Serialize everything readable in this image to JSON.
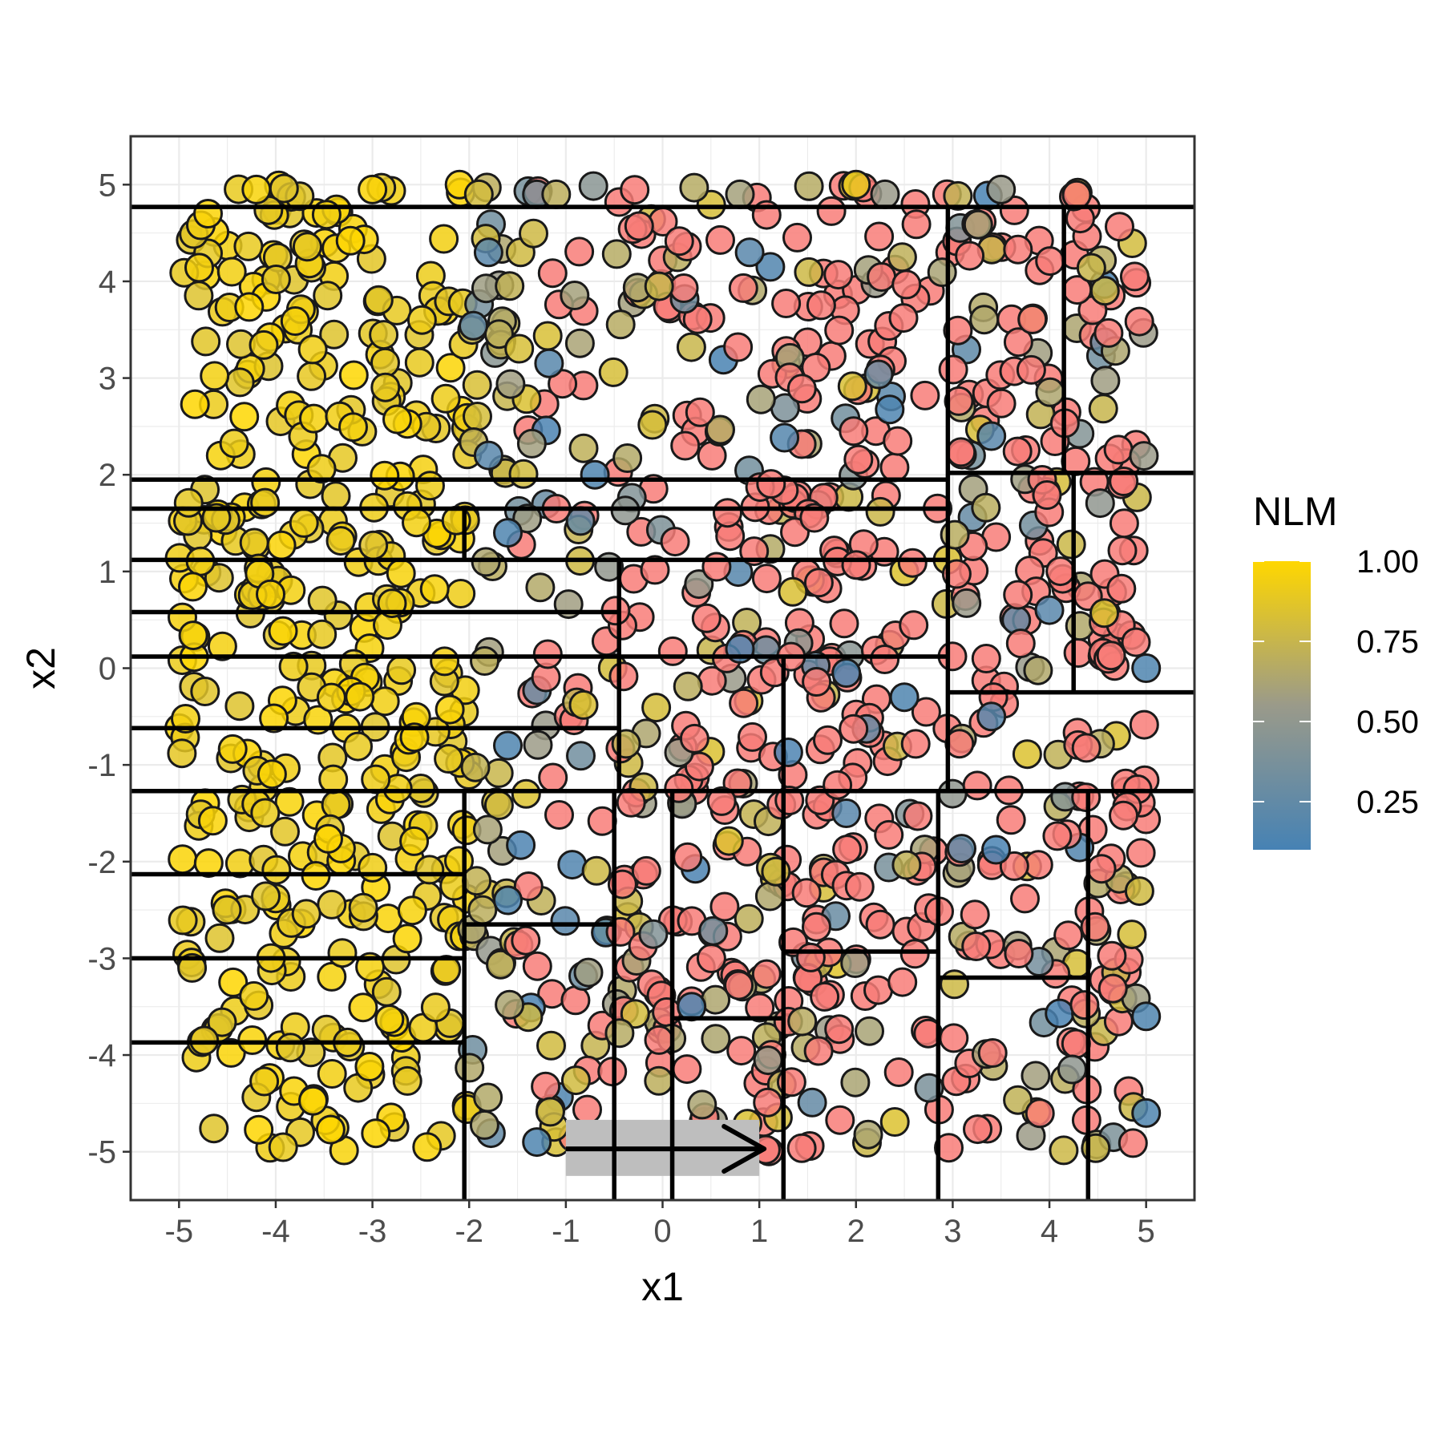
{
  "chart_data": {
    "type": "scatter",
    "xlabel": "x1",
    "ylabel": "x2",
    "xlim": [
      -5.5,
      5.5
    ],
    "ylim": [
      -5.5,
      5.5
    ],
    "xticks": [
      -5,
      -4,
      -3,
      -2,
      -1,
      0,
      1,
      2,
      3,
      4,
      5
    ],
    "yticks": [
      -5,
      -4,
      -3,
      -2,
      -1,
      0,
      1,
      2,
      3,
      4,
      5
    ],
    "grid": true,
    "legend": {
      "title": "NLM",
      "position": "right",
      "type": "colorbar",
      "range": [
        0.1,
        1.0
      ],
      "ticks": [
        1.0,
        0.75,
        0.5,
        0.25
      ],
      "tick_labels": [
        "1.00",
        "0.75",
        "0.50",
        "0.25"
      ],
      "colors": {
        "low": "#4682b4",
        "mid": "#9a9a8a",
        "high": "#ffd700"
      }
    },
    "unscored_color": "#f87c78",
    "points": {
      "description_values": "x1, x2, NLM (null NLM = red points without score)",
      "regions": [
        {
          "x": [
            -5.0,
            -2.0
          ],
          "y": [
            -5.0,
            5.0
          ],
          "count": 420,
          "nlm": [
            0.85,
            1.0
          ]
        },
        {
          "x": [
            -2.0,
            -1.6
          ],
          "y": [
            -5.0,
            5.0
          ],
          "count": 45,
          "nlm": [
            0.2,
            0.85
          ]
        },
        {
          "x": [
            -1.6,
            -0.5
          ],
          "y": [
            -5.0,
            5.0
          ],
          "count": 90,
          "nlm": [
            0.1,
            0.85
          ],
          "red_share": 0.35
        },
        {
          "x": [
            -0.5,
            3.0
          ],
          "y": [
            -5.0,
            5.0
          ],
          "count": 420,
          "nlm": [
            0.1,
            0.9
          ],
          "red_share": 0.62
        },
        {
          "x": [
            3.0,
            5.0
          ],
          "y": [
            -5.0,
            5.0
          ],
          "count": 260,
          "nlm": [
            0.1,
            0.85
          ],
          "red_share": 0.6
        }
      ],
      "explicit": [
        [
          -4.7,
          4.7,
          0.98
        ],
        [
          -4.2,
          4.95,
          0.97
        ],
        [
          -3.0,
          4.95,
          0.98
        ],
        [
          -2.1,
          5.0,
          0.98
        ],
        [
          -1.9,
          4.9,
          0.8
        ],
        [
          -1.3,
          4.9,
          0.4
        ],
        [
          -1.1,
          4.9,
          0.7
        ],
        [
          0.8,
          4.9,
          0.6
        ],
        [
          2.0,
          5.0,
          0.9
        ],
        [
          2.3,
          4.9,
          0.55
        ],
        [
          3.5,
          4.95,
          0.55
        ],
        [
          -1.8,
          4.3,
          0.2
        ],
        [
          0.9,
          4.3,
          0.2
        ],
        [
          -1.8,
          2.2,
          0.2
        ],
        [
          -0.7,
          2.0,
          0.15
        ],
        [
          -1.6,
          1.4,
          0.15
        ],
        [
          3.4,
          2.4,
          0.2
        ],
        [
          4.0,
          0.6,
          0.2
        ],
        [
          5.0,
          0.0,
          0.15
        ],
        [
          0.8,
          0.2,
          0.15
        ],
        [
          1.9,
          -0.05,
          0.15
        ],
        [
          2.5,
          -0.3,
          0.15
        ],
        [
          -1.6,
          -0.8,
          0.15
        ],
        [
          -1.6,
          -2.4,
          0.15
        ],
        [
          0.3,
          -3.5,
          0.15
        ],
        [
          1.9,
          -1.5,
          0.2
        ],
        [
          5.0,
          -3.6,
          0.15
        ],
        [
          5.0,
          -4.6,
          0.15
        ],
        [
          -1.3,
          -4.9,
          0.15
        ],
        [
          3.4,
          -0.5,
          0.2
        ]
      ]
    },
    "partition_lines": [
      {
        "orient": "h",
        "y": 4.77,
        "x": [
          -5.5,
          5.5
        ]
      },
      {
        "orient": "h",
        "y": 1.95,
        "x": [
          -5.5,
          2.95
        ]
      },
      {
        "orient": "h",
        "y": 1.65,
        "x": [
          -5.5,
          2.95
        ]
      },
      {
        "orient": "h",
        "y": 1.12,
        "x": [
          -5.5,
          2.95
        ]
      },
      {
        "orient": "h",
        "y": 0.58,
        "x": [
          -5.5,
          -0.45
        ]
      },
      {
        "orient": "h",
        "y": 0.12,
        "x": [
          -5.5,
          2.95
        ]
      },
      {
        "orient": "h",
        "y": -0.62,
        "x": [
          -5.5,
          -0.45
        ]
      },
      {
        "orient": "h",
        "y": -1.27,
        "x": [
          -5.5,
          5.5
        ]
      },
      {
        "orient": "h",
        "y": -2.13,
        "x": [
          -5.5,
          -2.05
        ]
      },
      {
        "orient": "h",
        "y": -3.0,
        "x": [
          -5.5,
          -2.05
        ]
      },
      {
        "orient": "h",
        "y": -3.87,
        "x": [
          -5.5,
          -2.05
        ]
      },
      {
        "orient": "h",
        "y": -2.65,
        "x": [
          -2.05,
          -0.5
        ]
      },
      {
        "orient": "h",
        "y": -3.62,
        "x": [
          0.1,
          1.25
        ]
      },
      {
        "orient": "h",
        "y": -2.93,
        "x": [
          1.25,
          2.85
        ]
      },
      {
        "orient": "h",
        "y": -3.2,
        "x": [
          2.85,
          4.4
        ]
      },
      {
        "orient": "h",
        "y": 2.02,
        "x": [
          2.95,
          5.5
        ]
      },
      {
        "orient": "h",
        "y": -0.25,
        "x": [
          2.95,
          5.5
        ]
      },
      {
        "orient": "v",
        "x": 2.95,
        "y": [
          -1.27,
          4.77
        ]
      },
      {
        "orient": "v",
        "x": 4.15,
        "y": [
          2.02,
          4.77
        ]
      },
      {
        "orient": "v",
        "x": 4.25,
        "y": [
          -0.25,
          2.02
        ]
      },
      {
        "orient": "v",
        "x": -2.05,
        "y": [
          1.12,
          1.65
        ]
      },
      {
        "orient": "v",
        "x": -0.45,
        "y": [
          -1.27,
          1.12
        ]
      },
      {
        "orient": "v",
        "x": 1.25,
        "y": [
          -1.27,
          0.12
        ]
      },
      {
        "orient": "v",
        "x": -2.05,
        "y": [
          -5.5,
          -1.27
        ]
      },
      {
        "orient": "v",
        "x": -0.5,
        "y": [
          -5.5,
          -1.27
        ]
      },
      {
        "orient": "v",
        "x": 0.1,
        "y": [
          -5.5,
          -1.27
        ]
      },
      {
        "orient": "v",
        "x": 1.25,
        "y": [
          -5.5,
          -1.27
        ]
      },
      {
        "orient": "v",
        "x": 2.85,
        "y": [
          -5.5,
          -1.27
        ]
      },
      {
        "orient": "v",
        "x": 4.4,
        "y": [
          -5.5,
          -1.27
        ]
      }
    ],
    "annotation": {
      "type": "arrow",
      "from": [
        -1.0,
        -4.97
      ],
      "to": [
        1.05,
        -4.97
      ],
      "highlight_box": {
        "x": [
          -1.0,
          1.0
        ],
        "y": [
          -5.25,
          -4.67
        ]
      },
      "highlight_color": "#bebebe"
    }
  }
}
